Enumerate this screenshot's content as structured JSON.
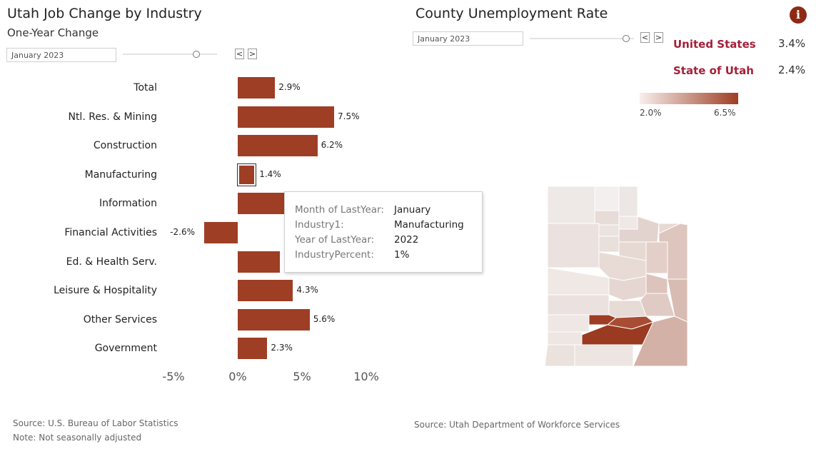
{
  "left": {
    "title": "Utah Job Change by Industry",
    "subtitle": "One-Year Change",
    "date_select": "January 2023",
    "prev_label": "<",
    "next_label": ">",
    "source": "Source: U.S. Bureau of Labor Statistics",
    "note": "Note: Not seasonally adjusted"
  },
  "right": {
    "title": "County Unemployment Rate",
    "date_select": "January 2023",
    "prev_label": "<",
    "next_label": ">",
    "us_label": "United States",
    "us_value": "3.4%",
    "utah_label": "State of Utah",
    "utah_value": "2.4%",
    "legend_min": "2.0%",
    "legend_max": "6.5%",
    "source": "Source: Utah Department of Workforce Services",
    "info_icon": "i"
  },
  "tooltip": {
    "rows": [
      {
        "key": "Month of LastYear:",
        "value": "January"
      },
      {
        "key": "Industry1:",
        "value": "Manufacturing"
      },
      {
        "key": "Year of LastYear:",
        "value": "2022"
      },
      {
        "key": "IndustryPercent:",
        "value": "1%"
      }
    ]
  },
  "chart_data": {
    "type": "bar",
    "orientation": "horizontal",
    "categories": [
      "Total",
      "Ntl. Res. & Mining",
      "Construction",
      "Manufacturing",
      "Information",
      "Financial Activities",
      "Ed. & Health Serv.",
      "Leisure & Hospitality",
      "Other Services",
      "Government"
    ],
    "values": [
      2.9,
      7.5,
      6.2,
      1.4,
      4.7,
      -2.6,
      3.3,
      4.3,
      5.6,
      2.3
    ],
    "value_labels": [
      "2.9%",
      "7.5%",
      "6.2%",
      "1.4%",
      "",
      "-2.6%",
      "",
      "4.3%",
      "5.6%",
      "2.3%"
    ],
    "selected": "Manufacturing",
    "ticks": [
      "-5%",
      "0%",
      "5%",
      "10%"
    ],
    "xlim": [
      -5,
      10
    ],
    "bar_color": "#9e3e24"
  }
}
